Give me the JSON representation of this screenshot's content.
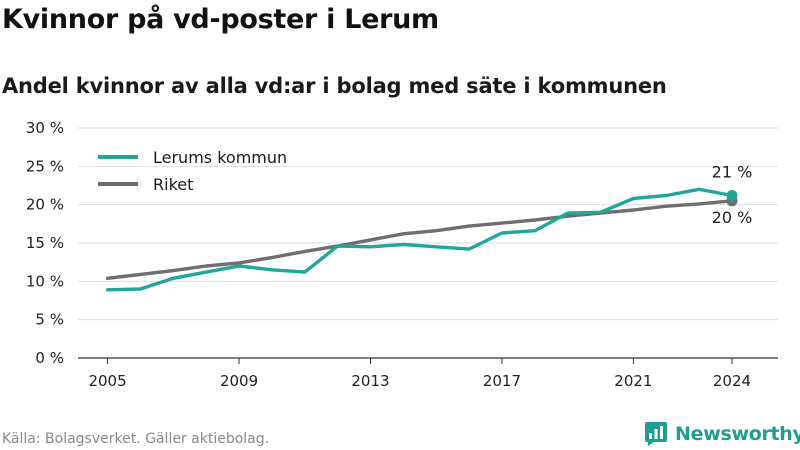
{
  "title": "Kvinnor på vd-poster i Lerum",
  "subtitle": "Andel kvinnor av alla vd:ar i bolag med säte i kommunen",
  "source": "Källa: Bolagsverket. Gäller aktiebolag.",
  "brand": {
    "name": "Newsworthy",
    "icon": "bar-chart-icon"
  },
  "colors": {
    "lerum": "#1fa89a",
    "riket": "#6e6d70",
    "grid": "#dedede",
    "brand": "#1f9d91"
  },
  "chart_data": {
    "type": "line",
    "x": [
      2005,
      2006,
      2007,
      2008,
      2009,
      2010,
      2011,
      2012,
      2013,
      2014,
      2015,
      2016,
      2017,
      2018,
      2019,
      2020,
      2021,
      2022,
      2023,
      2024
    ],
    "xticks": [
      2005,
      2009,
      2013,
      2017,
      2021,
      2024
    ],
    "xtick_labels": [
      "2005",
      "2009",
      "2013",
      "2017",
      "2021",
      "2024"
    ],
    "ylim": [
      0,
      30
    ],
    "yticks": [
      0,
      5,
      10,
      15,
      20,
      25,
      30
    ],
    "ytick_labels": [
      "0 %",
      "5 %",
      "10 %",
      "15 %",
      "20 %",
      "25 %",
      "30 %"
    ],
    "grid": true,
    "legend_position": "top-left",
    "series": [
      {
        "name": "Lerums kommun",
        "color": "#1fa89a",
        "values": [
          8.9,
          9.0,
          10.4,
          11.2,
          12.0,
          11.5,
          11.2,
          14.6,
          14.5,
          14.8,
          14.5,
          14.2,
          16.3,
          16.6,
          18.9,
          19.0,
          20.8,
          21.2,
          22.0,
          21.2
        ],
        "end_label": "21 %"
      },
      {
        "name": "Riket",
        "color": "#6e6d70",
        "values": [
          10.4,
          10.9,
          11.4,
          12.0,
          12.4,
          13.1,
          13.9,
          14.6,
          15.4,
          16.2,
          16.6,
          17.2,
          17.6,
          18.0,
          18.5,
          18.9,
          19.3,
          19.8,
          20.1,
          20.5
        ],
        "end_label": "20 %"
      }
    ]
  }
}
